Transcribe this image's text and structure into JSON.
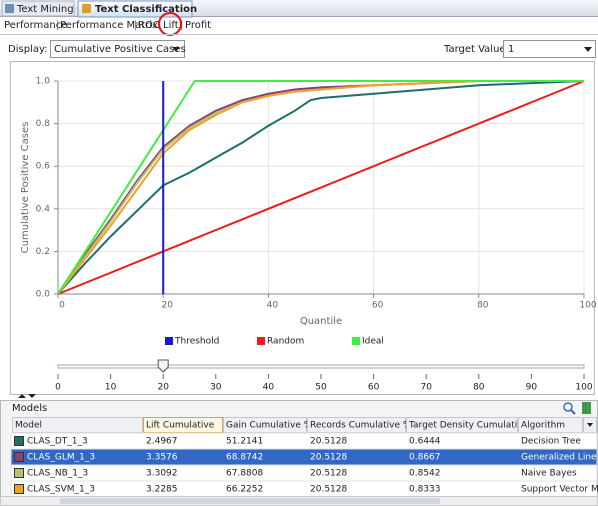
{
  "tabs": [
    "Text Mining",
    "Text Classification"
  ],
  "subtabs": [
    "Performance",
    "Performance Matrix",
    "ROC",
    "Lift",
    "Profit"
  ],
  "display": {
    "label": "Display:",
    "value": "Cumulative Positive Cases"
  },
  "target_value": {
    "label": "Target Value:",
    "value": "1"
  },
  "chart_data": {
    "type": "line",
    "xlabel": "Quantile",
    "ylabel": "Cumulative Positive Cases",
    "xlim": [
      0,
      100
    ],
    "ylim": [
      0,
      1
    ],
    "xticks": [
      0,
      20,
      40,
      60,
      80,
      100
    ],
    "yticks": [
      {
        "value": 0,
        "label": "0.0"
      },
      {
        "value": 0.2,
        "label": "0.2"
      },
      {
        "value": 0.4,
        "label": "0.4"
      },
      {
        "value": 0.6,
        "label": "0.6"
      },
      {
        "value": 0.8,
        "label": "0.8"
      },
      {
        "value": 1,
        "label": "1.0"
      }
    ],
    "grid": true,
    "model_curves": [
      {
        "color": "#1f6e6e",
        "x": [
          0,
          5,
          10,
          15,
          20,
          25,
          30,
          35,
          40,
          45,
          48,
          50,
          60,
          70,
          80,
          90,
          100
        ],
        "values": [
          0,
          0.14,
          0.27,
          0.39,
          0.51,
          0.57,
          0.64,
          0.71,
          0.79,
          0.86,
          0.91,
          0.92,
          0.94,
          0.96,
          0.98,
          0.99,
          1
        ]
      },
      {
        "color": "#8a3f78",
        "x": [
          0,
          5,
          10,
          15,
          20,
          25,
          30,
          35,
          40,
          45,
          50,
          60,
          70,
          80,
          100
        ],
        "values": [
          0,
          0.18,
          0.35,
          0.53,
          0.69,
          0.79,
          0.86,
          0.91,
          0.94,
          0.96,
          0.97,
          0.98,
          0.99,
          1,
          1
        ]
      },
      {
        "color": "#b5c36a",
        "x": [
          0,
          5,
          10,
          15,
          20,
          25,
          30,
          35,
          40,
          45,
          50,
          60,
          70,
          80,
          100
        ],
        "values": [
          0,
          0.17,
          0.34,
          0.52,
          0.68,
          0.78,
          0.85,
          0.9,
          0.93,
          0.95,
          0.96,
          0.98,
          0.99,
          1,
          1
        ]
      },
      {
        "color": "#f0a030",
        "x": [
          0,
          5,
          10,
          15,
          20,
          25,
          30,
          35,
          40,
          45,
          50,
          60,
          70,
          80,
          100
        ],
        "values": [
          0,
          0.16,
          0.32,
          0.49,
          0.66,
          0.77,
          0.84,
          0.9,
          0.93,
          0.95,
          0.96,
          0.98,
          0.99,
          1,
          1
        ]
      }
    ],
    "series": [
      {
        "name": "Threshold",
        "color": "#1a1acc",
        "x": [
          20,
          20
        ],
        "values": [
          0,
          1
        ]
      },
      {
        "name": "Random",
        "color": "#ee1c1c",
        "x": [
          0,
          100
        ],
        "values": [
          0,
          1
        ]
      },
      {
        "name": "Ideal",
        "color": "#40ee40",
        "x": [
          0,
          26,
          100
        ],
        "values": [
          0,
          1,
          1
        ]
      }
    ]
  },
  "slider": {
    "value": 20,
    "ticks": [
      0,
      10,
      20,
      30,
      40,
      50,
      60,
      70,
      80,
      90,
      100
    ]
  },
  "models": {
    "title": "Models",
    "columns": [
      "Model",
      "Lift Cumulative",
      "Gain Cumulative %",
      "Records Cumulative %",
      "Target Density Cumulative",
      "Algorithm"
    ],
    "rows": [
      [
        "CLAS_DT_1_3",
        "2.4967",
        "51.2141",
        "20.5128",
        "0.6444",
        "Decision Tree"
      ],
      [
        "CLAS_GLM_1_3",
        "3.3576",
        "68.8742",
        "20.5128",
        "0.8667",
        "Generalized Line"
      ],
      [
        "CLAS_NB_1_3",
        "3.3092",
        "67.8808",
        "20.5128",
        "0.8542",
        "Naive Bayes"
      ],
      [
        "CLAS_SVM_1_3",
        "3.2285",
        "66.2252",
        "20.5128",
        "0.8333",
        "Support Vector M"
      ]
    ],
    "selected_row": 1
  }
}
